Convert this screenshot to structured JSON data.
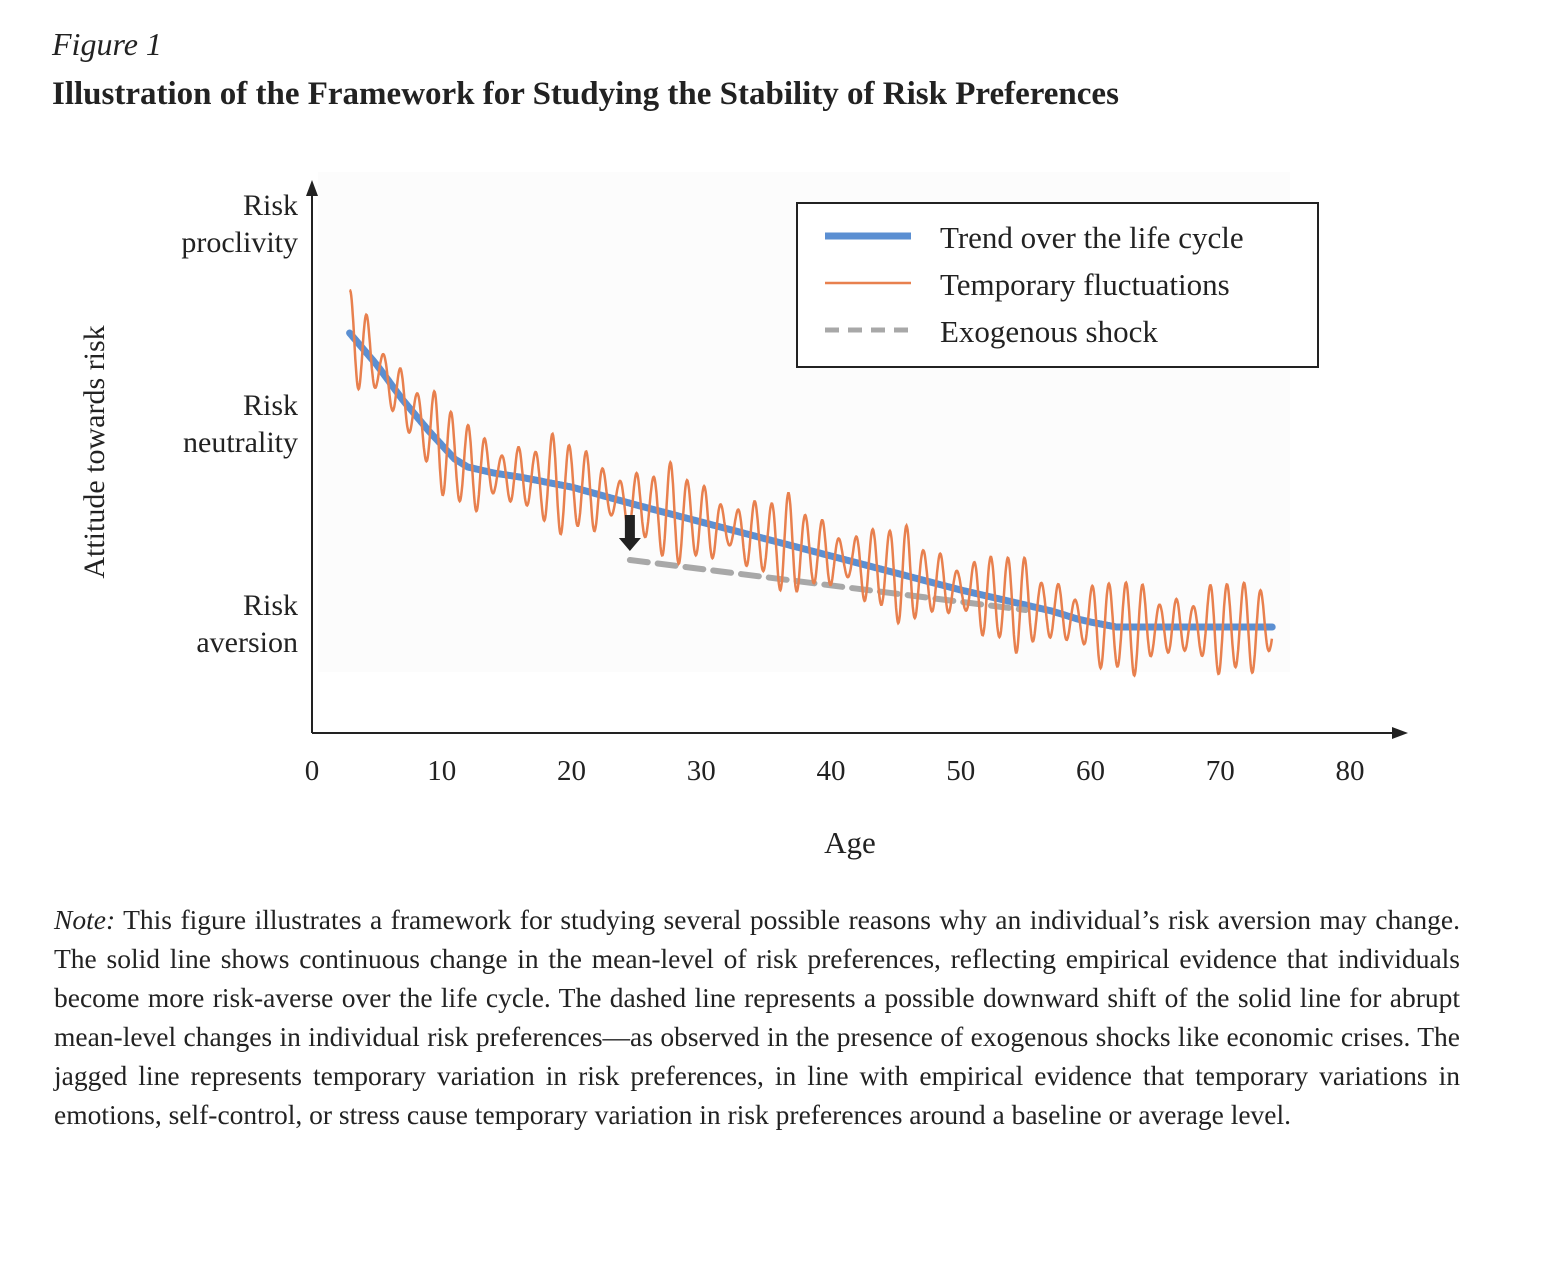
{
  "figure_label": "Figure 1",
  "title": "Illustration of the Framework for Studying the Stability of Risk Preferences",
  "chart_data": {
    "type": "line",
    "xlabel": "Age",
    "ylabel": "Attitude towards risk",
    "xlim": [
      0,
      80
    ],
    "xticks": [
      0,
      10,
      20,
      30,
      40,
      50,
      60,
      70,
      80
    ],
    "y_categories": [
      {
        "label_lines": [
          "Risk",
          "aversion"
        ],
        "level": 0
      },
      {
        "label_lines": [
          "Risk",
          "neutrality"
        ],
        "level": 1
      },
      {
        "label_lines": [
          "Risk",
          "proclivity"
        ],
        "level": 2
      }
    ],
    "ylim": [
      -0.54,
      2.2
    ],
    "grid": false,
    "legend_placement": "top-right",
    "series": [
      {
        "name": "Trend over the life cycle",
        "style": "solid-thick",
        "color": "#5b8fd2",
        "x": [
          2.9,
          5,
          7,
          9,
          10,
          11,
          12,
          14,
          16,
          20,
          25,
          30,
          35,
          40,
          45,
          50,
          55,
          57,
          59,
          60,
          62,
          66,
          70,
          74
        ],
        "y": [
          1.46,
          1.3,
          1.125,
          0.97,
          0.9,
          0.83,
          0.79,
          0.76,
          0.74,
          0.69,
          0.6,
          0.515,
          0.43,
          0.345,
          0.26,
          0.175,
          0.1,
          0.07,
          0.03,
          0.015,
          -0.01,
          -0.01,
          -0.01,
          -0.01
        ]
      },
      {
        "name": "Temporary fluctuations",
        "style": "solid-thin",
        "color": "#e8804e",
        "oscillates_around": "Trend over the life cycle",
        "period_years": 1.3,
        "amplitude": 0.2,
        "x_range": [
          2.9,
          74
        ]
      },
      {
        "name": "Exogenous shock",
        "style": "dashed",
        "color": "#a8a8a8",
        "x": [
          24.5,
          55
        ],
        "y": [
          0.325,
          0.075
        ]
      }
    ],
    "annotations": [
      {
        "type": "down-arrow",
        "x": 24.5,
        "y_from": 0.55,
        "y_to": 0.37,
        "color": "#222222"
      }
    ]
  },
  "note": {
    "label": "Note:",
    "text": " This figure illustrates a framework for studying several possible reasons why an individual’s risk aversion may change. The solid line shows continuous change in the mean-level of risk preferences, reflecting empirical evidence that individuals become more risk-averse over the life cycle. The dashed line represents a possible downward shift of the solid line for abrupt mean-level changes in individual risk preferences—as observed in the presence of exogenous shocks like economic crises. The jagged line represents temporary variation in risk preferences, in line with empirical evidence that temporary variations in emotions, self-control, or stress cause temporary variation in risk preferences around a baseline or average level."
  }
}
